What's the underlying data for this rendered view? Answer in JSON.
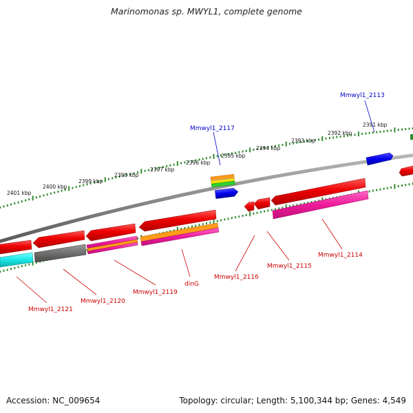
{
  "title": "Marinomonas sp. MWYL1, complete genome",
  "footer": {
    "accession": "Accession: NC_009654",
    "summary": "Topology: circular; Length: 5,100,344 bp; Genes: 4,549"
  },
  "scale_labels": [
    "2401 kbp",
    "2400 kbp",
    "2399 kbp",
    "2398 kbp",
    "2397 kbp",
    "2396 kbp",
    "2395 kbp",
    "2394 kbp",
    "2393 kbp",
    "2392 kbp",
    "2391 kbp"
  ],
  "gene_labels": [
    {
      "name": "Mmwyl1_2113",
      "color": "#0000cc"
    },
    {
      "name": "Mmwyl1_2117",
      "color": "#0000cc"
    },
    {
      "name": "Mmwyl1_2114",
      "color": "#cc0000"
    },
    {
      "name": "Mmwyl1_2115",
      "color": "#cc0000"
    },
    {
      "name": "Mmwyl1_2116",
      "color": "#cc0000"
    },
    {
      "name": "dinG",
      "color": "#cc0000"
    },
    {
      "name": "Mmwyl1_2119",
      "color": "#cc0000"
    },
    {
      "name": "Mmwyl1_2120",
      "color": "#cc0000"
    },
    {
      "name": "Mmwyl1_2121",
      "color": "#cc0000"
    }
  ],
  "colors": {
    "backbone": "#8a8a8a",
    "scale_ticks": "#2e8b2e",
    "cds": "#e00000",
    "forward_label": "#0000cc",
    "reverse_label": "#cc0000"
  }
}
